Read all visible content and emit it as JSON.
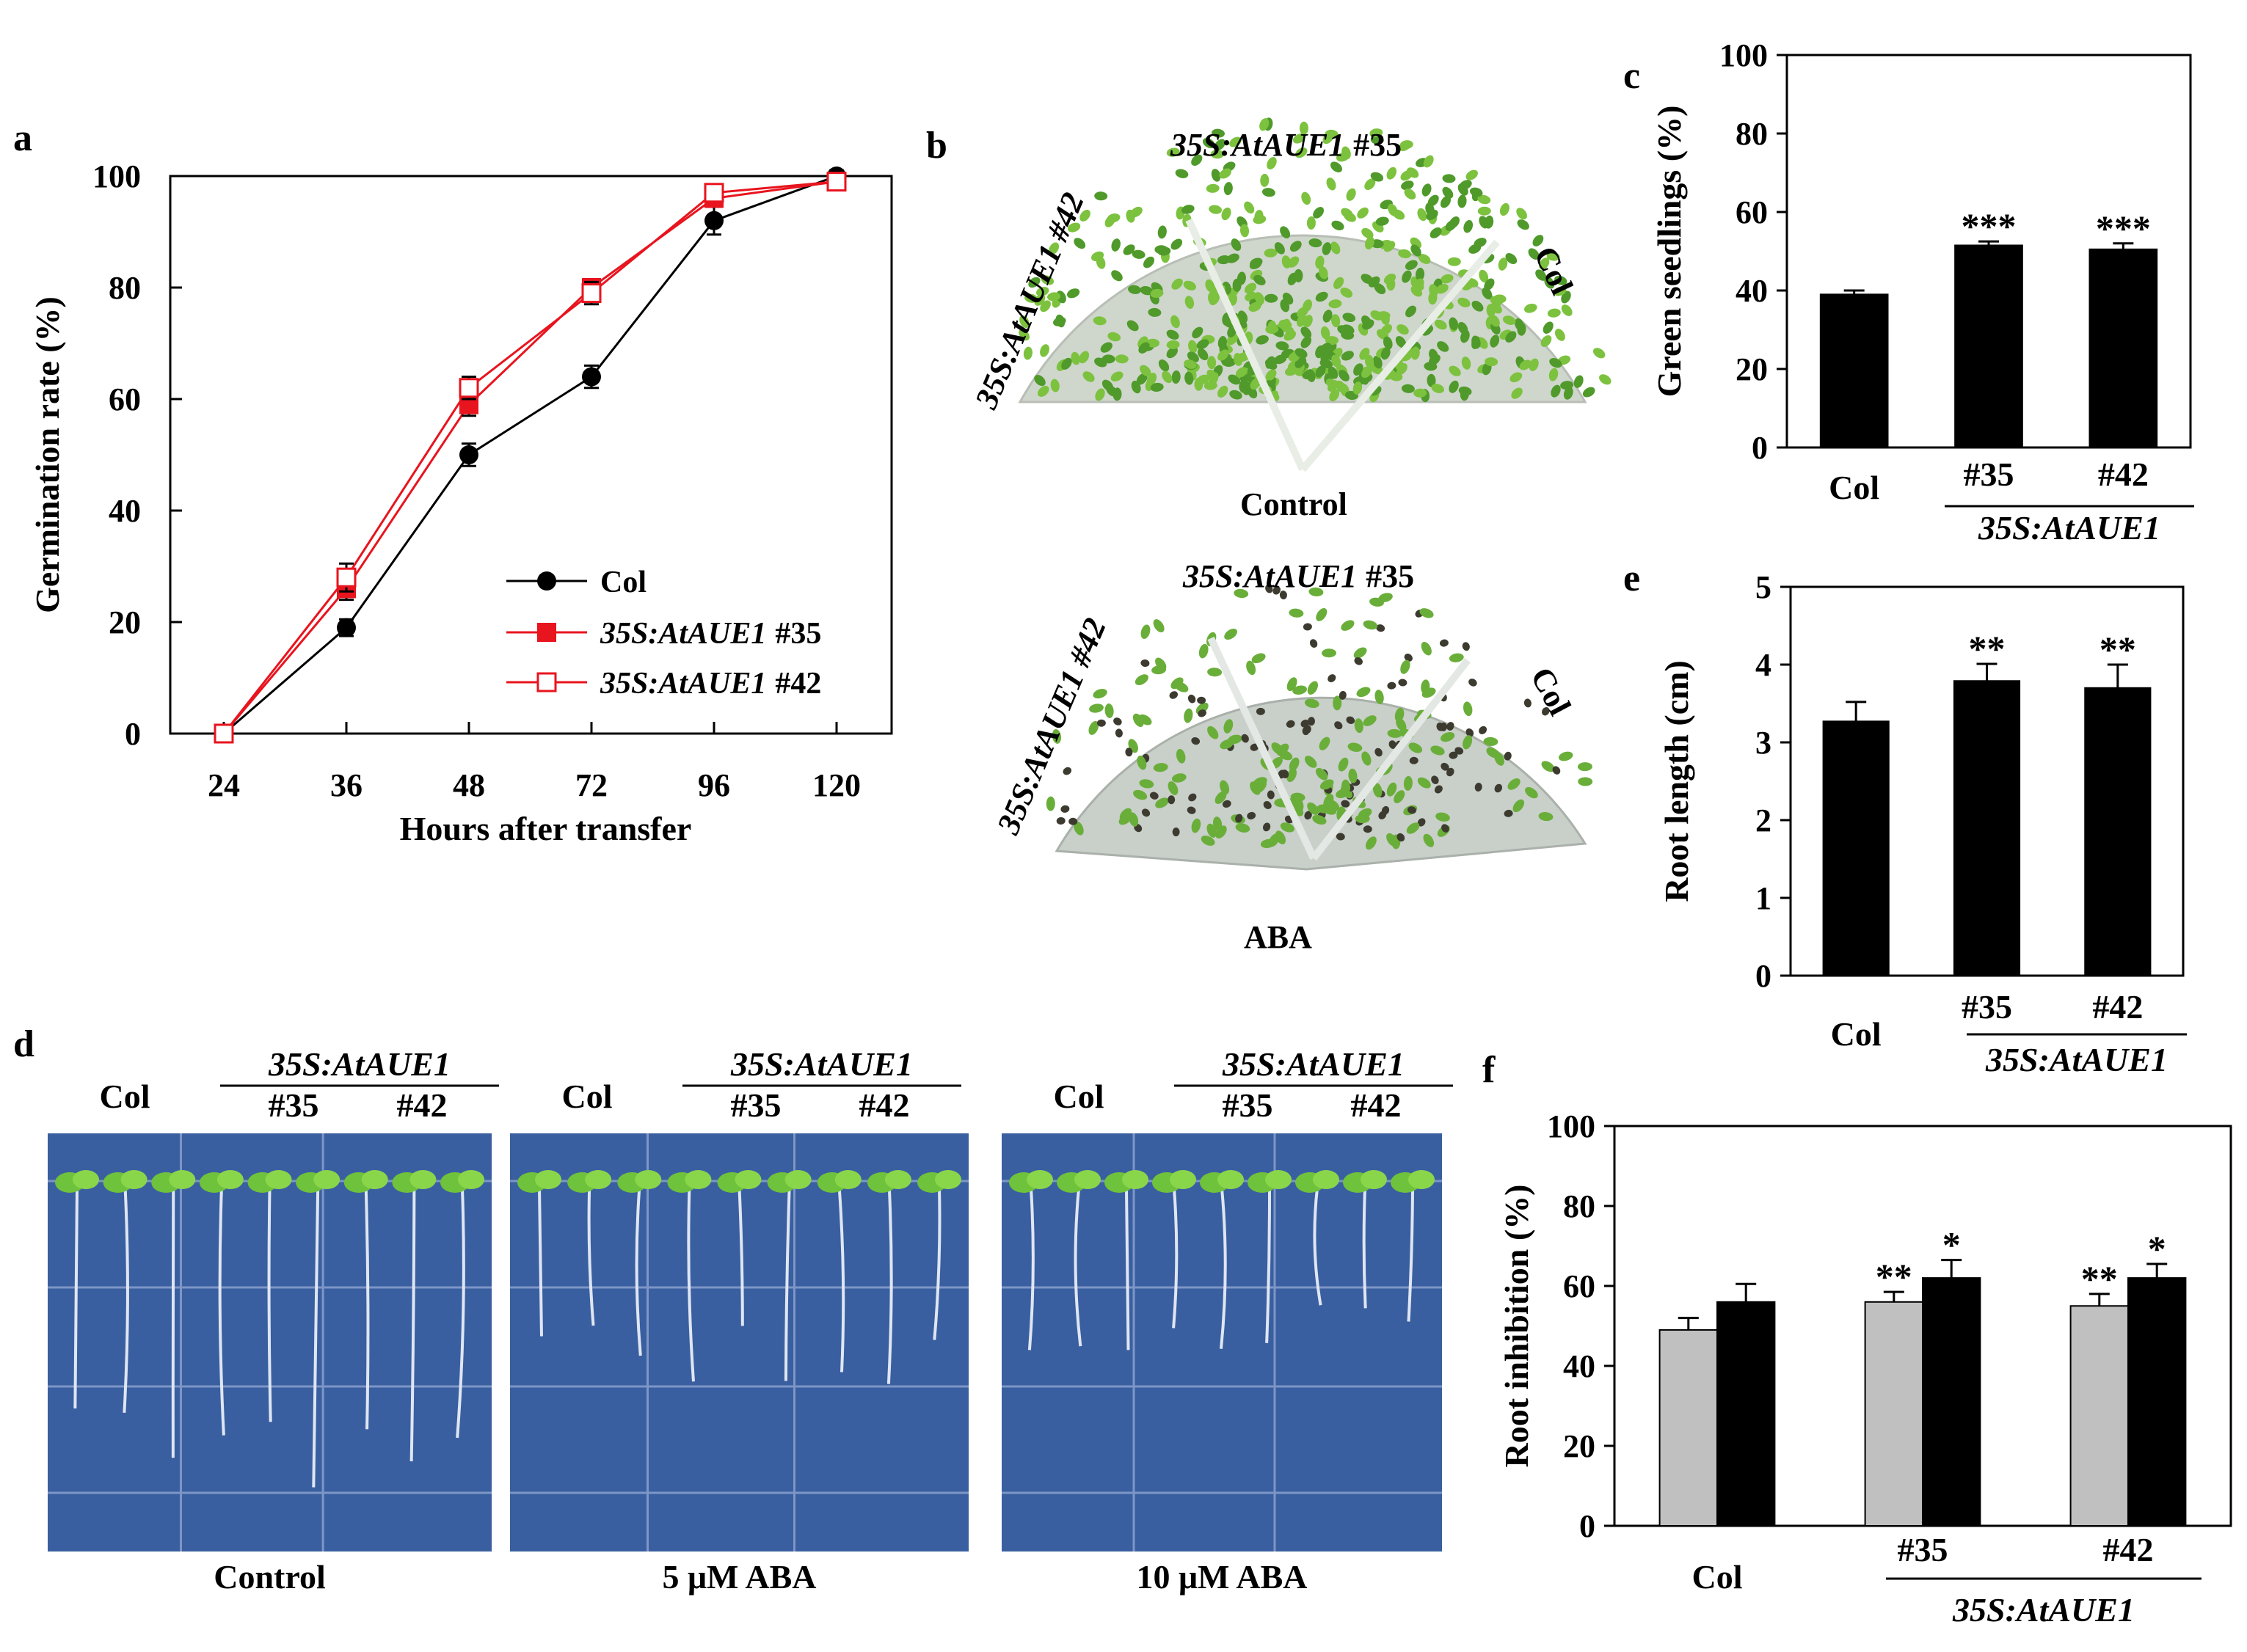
{
  "panels": {
    "a": "a",
    "b": "b",
    "c": "c",
    "d": "d",
    "e": "e",
    "f": "f"
  },
  "photo_b": {
    "label_35": "35S:AtAUE1",
    "num_35": "#35",
    "label_42": "35S:AtAUE1 #42",
    "label_col": "Col",
    "control_caption": "Control",
    "aba_caption": "ABA",
    "plant_color_control": "#7cc23e",
    "plant_color_aba": "#6aae3a",
    "plate_color": "#c9cfc9"
  },
  "photo_d": {
    "col": "Col",
    "group": "35S:AtAUE1",
    "n35": "#35",
    "n42": "#42",
    "captions": [
      "Control",
      "5 μM ABA",
      "10 μM ABA"
    ],
    "background_color": "#3a5fa0"
  },
  "chart_data": [
    {
      "id": "a",
      "type": "line",
      "x": [
        "24",
        "36",
        "48",
        "72",
        "96",
        "120"
      ],
      "xlabel": "Hours after transfer",
      "ylabel": "Germination rate (%)",
      "ylim": [
        0,
        100
      ],
      "yticks": [
        "0",
        "20",
        "40",
        "60",
        "80",
        "100"
      ],
      "legend_position": "bottom-right",
      "series": [
        {
          "name": "Col",
          "values": [
            0,
            19,
            50,
            64,
            92,
            100
          ],
          "errors": [
            0,
            1.5,
            2,
            2,
            2.5,
            1
          ],
          "color": "#000000",
          "marker": "filled-circle"
        },
        {
          "name_prefix": "35S:AtAUE1",
          "name_suffix": "#35",
          "values": [
            0,
            26,
            59,
            80,
            96,
            99
          ],
          "errors": [
            0,
            2,
            2,
            1.5,
            1.5,
            1
          ],
          "color": "#e8141e",
          "marker": "filled-square"
        },
        {
          "name_prefix": "35S:AtAUE1",
          "name_suffix": "#42",
          "values": [
            0,
            28,
            62,
            79,
            97,
            99
          ],
          "errors": [
            0,
            2.5,
            2,
            2,
            1.5,
            1
          ],
          "color": "#e8141e",
          "marker": "open-square"
        }
      ]
    },
    {
      "id": "c",
      "type": "bar",
      "categories": [
        "Col",
        "#35",
        "#42"
      ],
      "group_label": "35S:AtAUE1",
      "values": [
        39,
        51.5,
        50.5
      ],
      "errors": [
        1,
        1,
        1.5
      ],
      "significance": [
        "",
        "***",
        "***"
      ],
      "ylabel": "Green seedlings (%)",
      "ylim": [
        0,
        100
      ],
      "yticks": [
        "0",
        "20",
        "40",
        "60",
        "80",
        "100"
      ],
      "bar_color": "#000000"
    },
    {
      "id": "e",
      "type": "bar",
      "categories": [
        "Col",
        "#35",
        "#42"
      ],
      "group_label": "35S:AtAUE1",
      "values": [
        3.27,
        3.79,
        3.7
      ],
      "errors": [
        0.25,
        0.22,
        0.3
      ],
      "significance": [
        "",
        "**",
        "**"
      ],
      "ylabel": "Root length (cm)",
      "ylim": [
        0,
        5
      ],
      "yticks": [
        "0",
        "1",
        "2",
        "3",
        "4",
        "5"
      ],
      "bar_color": "#000000"
    },
    {
      "id": "f",
      "type": "bar",
      "categories": [
        "Col",
        "#35",
        "#42"
      ],
      "group_label": "35S:AtAUE1",
      "series": [
        {
          "values": [
            49,
            56,
            55
          ],
          "errors": [
            3,
            2.5,
            3
          ],
          "significance": [
            "",
            "**",
            "**"
          ],
          "color": "#c0c0c0"
        },
        {
          "values": [
            56,
            62,
            62
          ],
          "errors": [
            4.5,
            4.5,
            3.5
          ],
          "significance": [
            "",
            "*",
            "*"
          ],
          "color": "#000000"
        }
      ],
      "ylabel": "Root inhibition (%)",
      "ylim": [
        0,
        100
      ],
      "yticks": [
        "0",
        "20",
        "40",
        "60",
        "80",
        "100"
      ]
    }
  ]
}
